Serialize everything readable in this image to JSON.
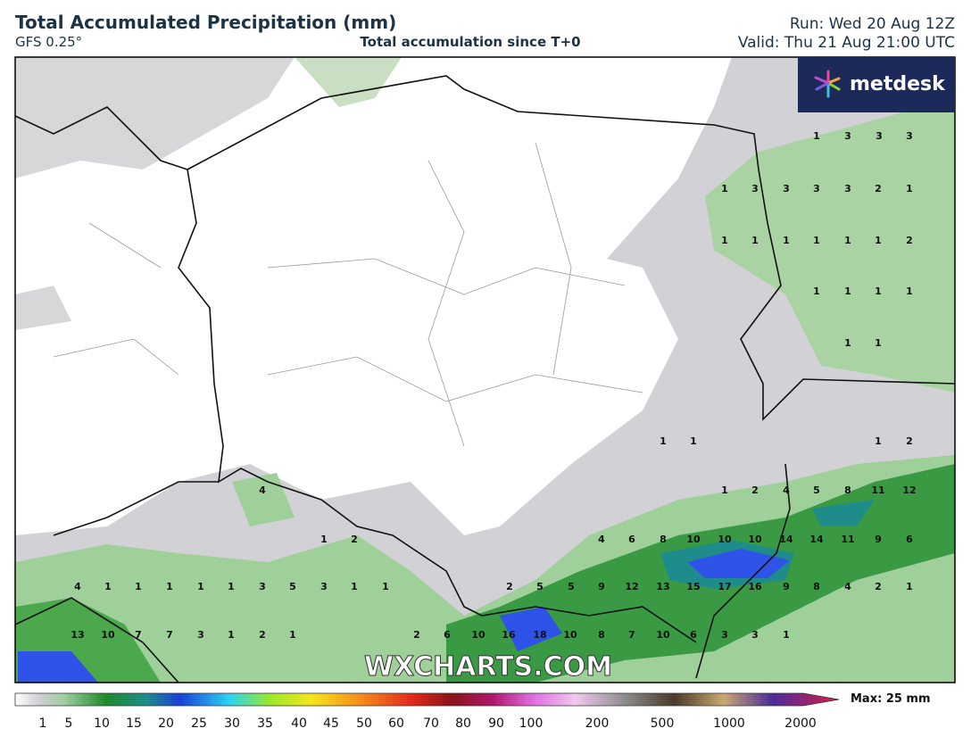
{
  "header": {
    "title": "Total Accumulated Precipitation (mm)",
    "model": "GFS 0.25°",
    "subtitle": "Total accumulation since T+0",
    "run": "Run: Wed 20 Aug 12Z",
    "valid": "Valid: Thu 21 Aug 21:00 UTC"
  },
  "logo": "metdesk",
  "watermark": "WXCHARTS.COM",
  "map_labels": [
    [
      1,
      3,
      3,
      3
    ],
    [
      1,
      3,
      3,
      3,
      3,
      2,
      1
    ],
    [
      1,
      1,
      1,
      1,
      1,
      1,
      2
    ],
    [
      1,
      1,
      1,
      1
    ],
    [
      1,
      1
    ],
    [
      1,
      1,
      1,
      2
    ],
    [
      4,
      1,
      2,
      4,
      5,
      8,
      11,
      12
    ],
    [
      1,
      2,
      4,
      6,
      8,
      10,
      10,
      10,
      14,
      14,
      11,
      9,
      6
    ],
    [
      4,
      1,
      1,
      1,
      1,
      1,
      3,
      5,
      3,
      1,
      1,
      2,
      5,
      5,
      9,
      12,
      13,
      15,
      17,
      16,
      9,
      8,
      4,
      2,
      1
    ],
    [
      13,
      10,
      7,
      7,
      3,
      1,
      2,
      1,
      2,
      6,
      10,
      16,
      18,
      10,
      8,
      7,
      10,
      6,
      3,
      3,
      1
    ]
  ],
  "colorbar": {
    "ticks": [
      1,
      5,
      10,
      15,
      20,
      25,
      30,
      35,
      40,
      45,
      50,
      60,
      70,
      80,
      90,
      100,
      200,
      500,
      1000,
      2000
    ],
    "max_label": "Max: 25 mm"
  }
}
